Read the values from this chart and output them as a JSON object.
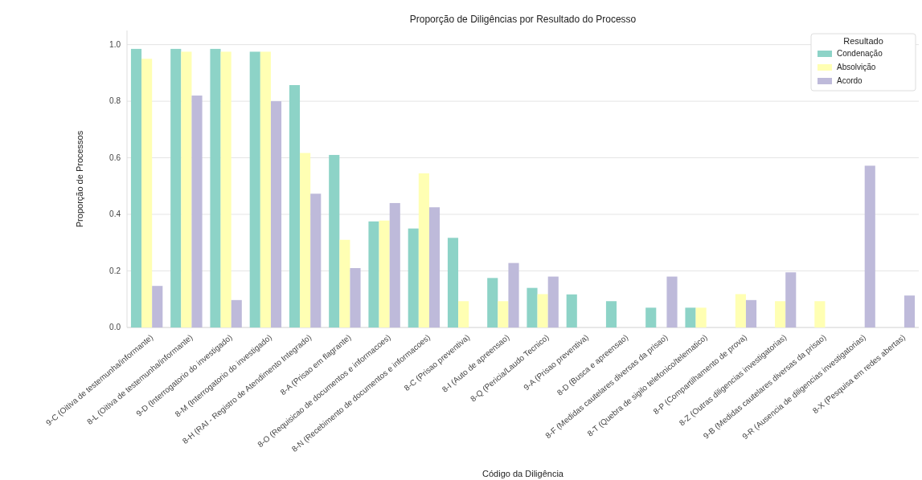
{
  "chart_data": {
    "type": "bar",
    "title": "Proporção de Diligências por Resultado do Processo",
    "xlabel": "Código da Diligência",
    "ylabel": "Proporção de Processos",
    "legend_title": "Resultado",
    "legend": "top right",
    "grid": "y",
    "categories": [
      "9-C (Oitiva de testemunha/informante)",
      "8-L (Oitiva de testemunha/informante)",
      "9-D (Interrogatorio do investigado)",
      "8-M (Interrogatorio do investigado)",
      "8-H (RAI - Registro de Atendimento Integrado)",
      "8-A (Prisao em flagrante)",
      "8-O (Requisicao de documentos e informacoes)",
      "8-N (Recebimento de documentos e informacoes)",
      "8-C (Prisao preventiva)",
      "8-I (Auto de apreensao)",
      "8-Q (Pericia/Laudo Tecnico)",
      "9-A (Prisao preventiva)",
      "8-D (Busca e apreensao)",
      "8-F (Medidas cautelares diversas da prisao)",
      "8-T (Quebra de sigilo telefonico/telematico)",
      "8-P (Compartilhamento de prova)",
      "8-Z (Outras diligencias investigatorias)",
      "9-B (Medidas cautelares diversas da prisao)",
      "9-R (Ausencia de diligencias investigatorias)",
      "8-X (Pesquisa em redes abertas)"
    ],
    "ylim": [
      0,
      1.05
    ],
    "yticks": [
      {
        "value": 0,
        "label": "0.0"
      },
      0.2,
      0.4,
      0.6,
      0.8,
      {
        "value": 1,
        "label": "1.0"
      }
    ],
    "series": [
      {
        "name": "Condenação",
        "color": "#8dd3c7",
        "values": [
          0.985,
          0.985,
          0.985,
          0.975,
          0.857,
          0.61,
          0.375,
          0.35,
          0.317,
          0.175,
          0.14,
          0.117,
          0.093,
          0.07,
          0.07,
          null,
          null,
          null,
          null,
          null
        ]
      },
      {
        "name": "Absolvição",
        "color": "#ffffb3",
        "values": [
          0.95,
          0.975,
          0.975,
          0.975,
          0.617,
          0.31,
          0.378,
          0.545,
          0.093,
          0.093,
          0.118,
          null,
          null,
          null,
          0.07,
          0.118,
          0.093,
          0.093,
          null,
          null
        ]
      },
      {
        "name": "Acordo",
        "color": "#bebada",
        "values": [
          0.147,
          0.82,
          0.097,
          0.8,
          0.473,
          0.21,
          0.44,
          0.425,
          null,
          0.228,
          0.18,
          null,
          null,
          0.18,
          null,
          0.097,
          0.195,
          null,
          0.572,
          0.113
        ]
      }
    ]
  }
}
